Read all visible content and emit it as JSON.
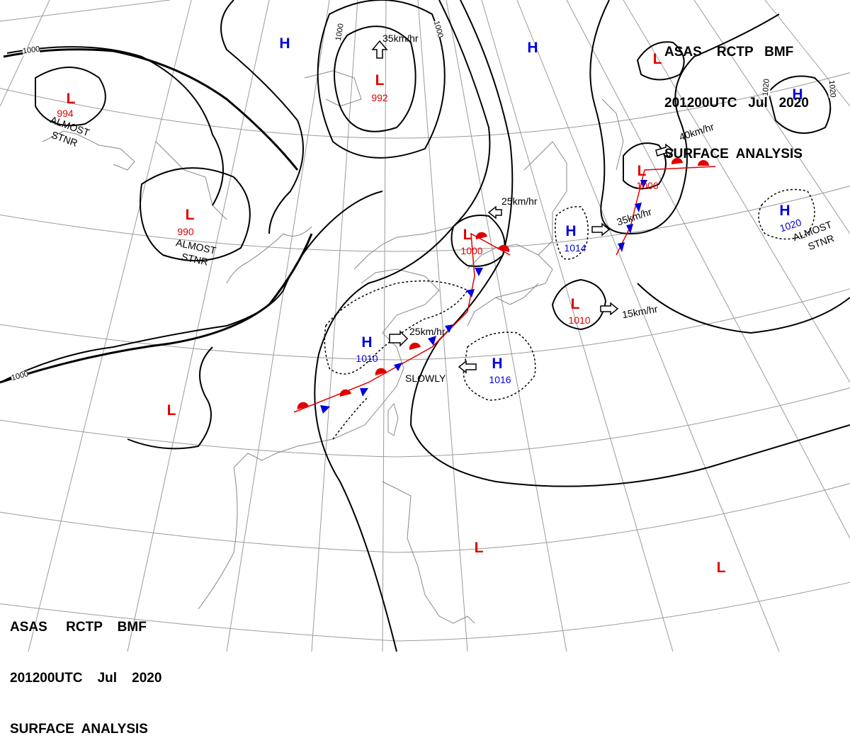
{
  "header": {
    "line1": "ASAS    RCTP   BMF",
    "line2": "201200UTC   Jul   2020",
    "line3": "SURFACE  ANALYSIS"
  },
  "footer": {
    "line1": "ASAS     RCTP    BMF",
    "line2": "201200UTC    Jul    2020",
    "line3": "SURFACE  ANALYSIS"
  },
  "pressure_centers": [
    {
      "type": "L",
      "value": "994",
      "color": "#e00000"
    },
    {
      "type": "L",
      "value": "990",
      "color": "#e00000"
    },
    {
      "type": "L",
      "value": "992",
      "color": "#e00000"
    },
    {
      "type": "L",
      "value": "1000",
      "color": "#e00000"
    },
    {
      "type": "L",
      "value": "1006",
      "color": "#e00000"
    },
    {
      "type": "L",
      "value": "1010",
      "color": "#e00000"
    },
    {
      "type": "H",
      "value": "1010",
      "color": "#0000e0"
    },
    {
      "type": "H",
      "value": "1016",
      "color": "#0000e0"
    },
    {
      "type": "H",
      "value": "1014",
      "color": "#0000e0"
    },
    {
      "type": "H",
      "value": "1020",
      "color": "#0000e0"
    }
  ],
  "center_letters": {
    "low": "L",
    "high": "H"
  },
  "movement_labels": {
    "m1": "35km/hr",
    "m2": "25km/hr",
    "m3": "25km/hr",
    "m4": "SLOWLY",
    "m5": "35km/hr",
    "m6": "40km/hr",
    "m7": "15km/hr"
  },
  "status_labels": {
    "s1_a": "ALMOST",
    "s1_b": "STNR",
    "s2_a": "ALMOST",
    "s2_b": "STNR",
    "s3_a": "ALMOST",
    "s3_b": "STNR"
  },
  "isobar_labels": {
    "i1": "1000",
    "i2": "1000",
    "i3": "1000",
    "i4": "1000",
    "i5": "1020",
    "i6": "1020"
  },
  "colors": {
    "low": "#e00000",
    "high": "#0000e0",
    "isobar": "#000000",
    "coastline": "#888888",
    "graticule": "#9a9a9a"
  }
}
